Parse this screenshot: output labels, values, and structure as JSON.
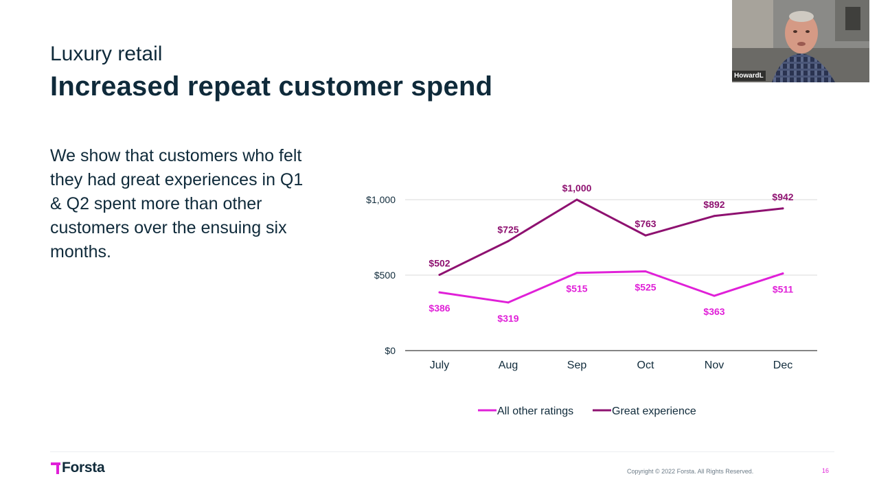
{
  "slide": {
    "subtitle": "Luxury retail",
    "title": "Increased repeat customer spend",
    "body": "We show that customers who felt they had great experiences in Q1 & Q2 spent more than other customers over the ensuing six months."
  },
  "chart_data": {
    "type": "line",
    "categories": [
      "July",
      "Aug",
      "Sep",
      "Oct",
      "Nov",
      "Dec"
    ],
    "series": [
      {
        "name": "All other ratings",
        "color": "#e020d8",
        "values": [
          386,
          319,
          515,
          525,
          363,
          511
        ],
        "labels": [
          "$386",
          "$319",
          "$515",
          "$525",
          "$363",
          "$511"
        ],
        "label_position": [
          "below",
          "below",
          "below",
          "below",
          "below",
          "below"
        ]
      },
      {
        "name": "Great experience",
        "color": "#8e1170",
        "values": [
          502,
          725,
          1000,
          763,
          892,
          942
        ],
        "labels": [
          "$502",
          "$725",
          "$1,000",
          "$763",
          "$892",
          "$942"
        ],
        "label_position": [
          "above",
          "above",
          "above",
          "above",
          "above",
          "above"
        ]
      }
    ],
    "ylim": [
      0,
      1000
    ],
    "yticks": [
      0,
      500,
      1000
    ],
    "ytick_labels": [
      "$0",
      "$500",
      "$1,000"
    ],
    "grid": true,
    "legend": "bottom-center",
    "title": "",
    "xlabel": "",
    "ylabel": ""
  },
  "footer": {
    "logo_text": "Forsta",
    "copyright": "Copyright © 2022 Forsta. All Rights Reserved.",
    "page_number": "16"
  },
  "video": {
    "participant_name": "HowardL"
  }
}
